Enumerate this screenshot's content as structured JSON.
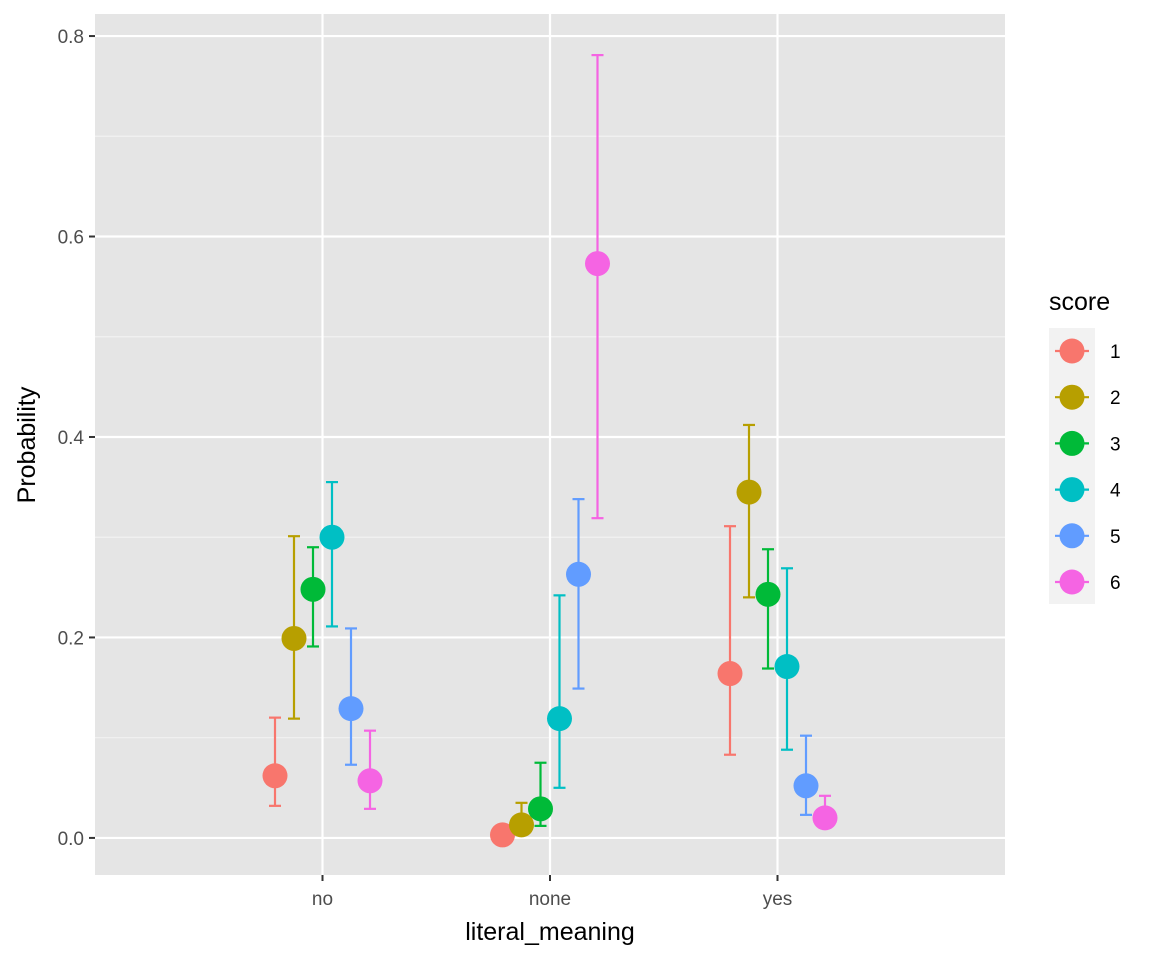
{
  "chart_data": {
    "type": "scatter",
    "subtype": "pointrange-dodged",
    "title": "",
    "xlabel": "literal_meaning",
    "ylabel": "Probability",
    "categories": [
      "no",
      "none",
      "yes"
    ],
    "ylim": [
      -0.037,
      0.822
    ],
    "yticks": [
      0.0,
      0.2,
      0.4,
      0.6,
      0.8
    ],
    "ytick_labels": [
      "0.0",
      "0.2",
      "0.4",
      "0.6",
      "0.8"
    ],
    "grid": true,
    "background": "#e5e5e5",
    "legend": {
      "title": "score",
      "position": "right"
    },
    "series": [
      {
        "name": "1",
        "color": "#f8766d",
        "values": [
          0.062,
          0.003,
          0.164
        ],
        "lower": [
          0.032,
          0.0,
          0.083
        ],
        "upper": [
          0.12,
          0.006,
          0.311
        ]
      },
      {
        "name": "2",
        "color": "#b79f00",
        "values": [
          0.199,
          0.013,
          0.345
        ],
        "lower": [
          0.119,
          0.004,
          0.24
        ],
        "upper": [
          0.301,
          0.035,
          0.412
        ]
      },
      {
        "name": "3",
        "color": "#00ba38",
        "values": [
          0.248,
          0.029,
          0.243
        ],
        "lower": [
          0.191,
          0.012,
          0.169
        ],
        "upper": [
          0.29,
          0.075,
          0.288
        ]
      },
      {
        "name": "4",
        "color": "#00bfc4",
        "values": [
          0.3,
          0.119,
          0.171
        ],
        "lower": [
          0.211,
          0.05,
          0.088
        ],
        "upper": [
          0.355,
          0.242,
          0.269
        ]
      },
      {
        "name": "5",
        "color": "#619cff",
        "values": [
          0.129,
          0.263,
          0.052
        ],
        "lower": [
          0.073,
          0.149,
          0.023
        ],
        "upper": [
          0.209,
          0.338,
          0.102
        ]
      },
      {
        "name": "6",
        "color": "#f564e3",
        "values": [
          0.057,
          0.573,
          0.02
        ],
        "lower": [
          0.029,
          0.319,
          0.01
        ],
        "upper": [
          0.107,
          0.781,
          0.042
        ]
      }
    ]
  }
}
